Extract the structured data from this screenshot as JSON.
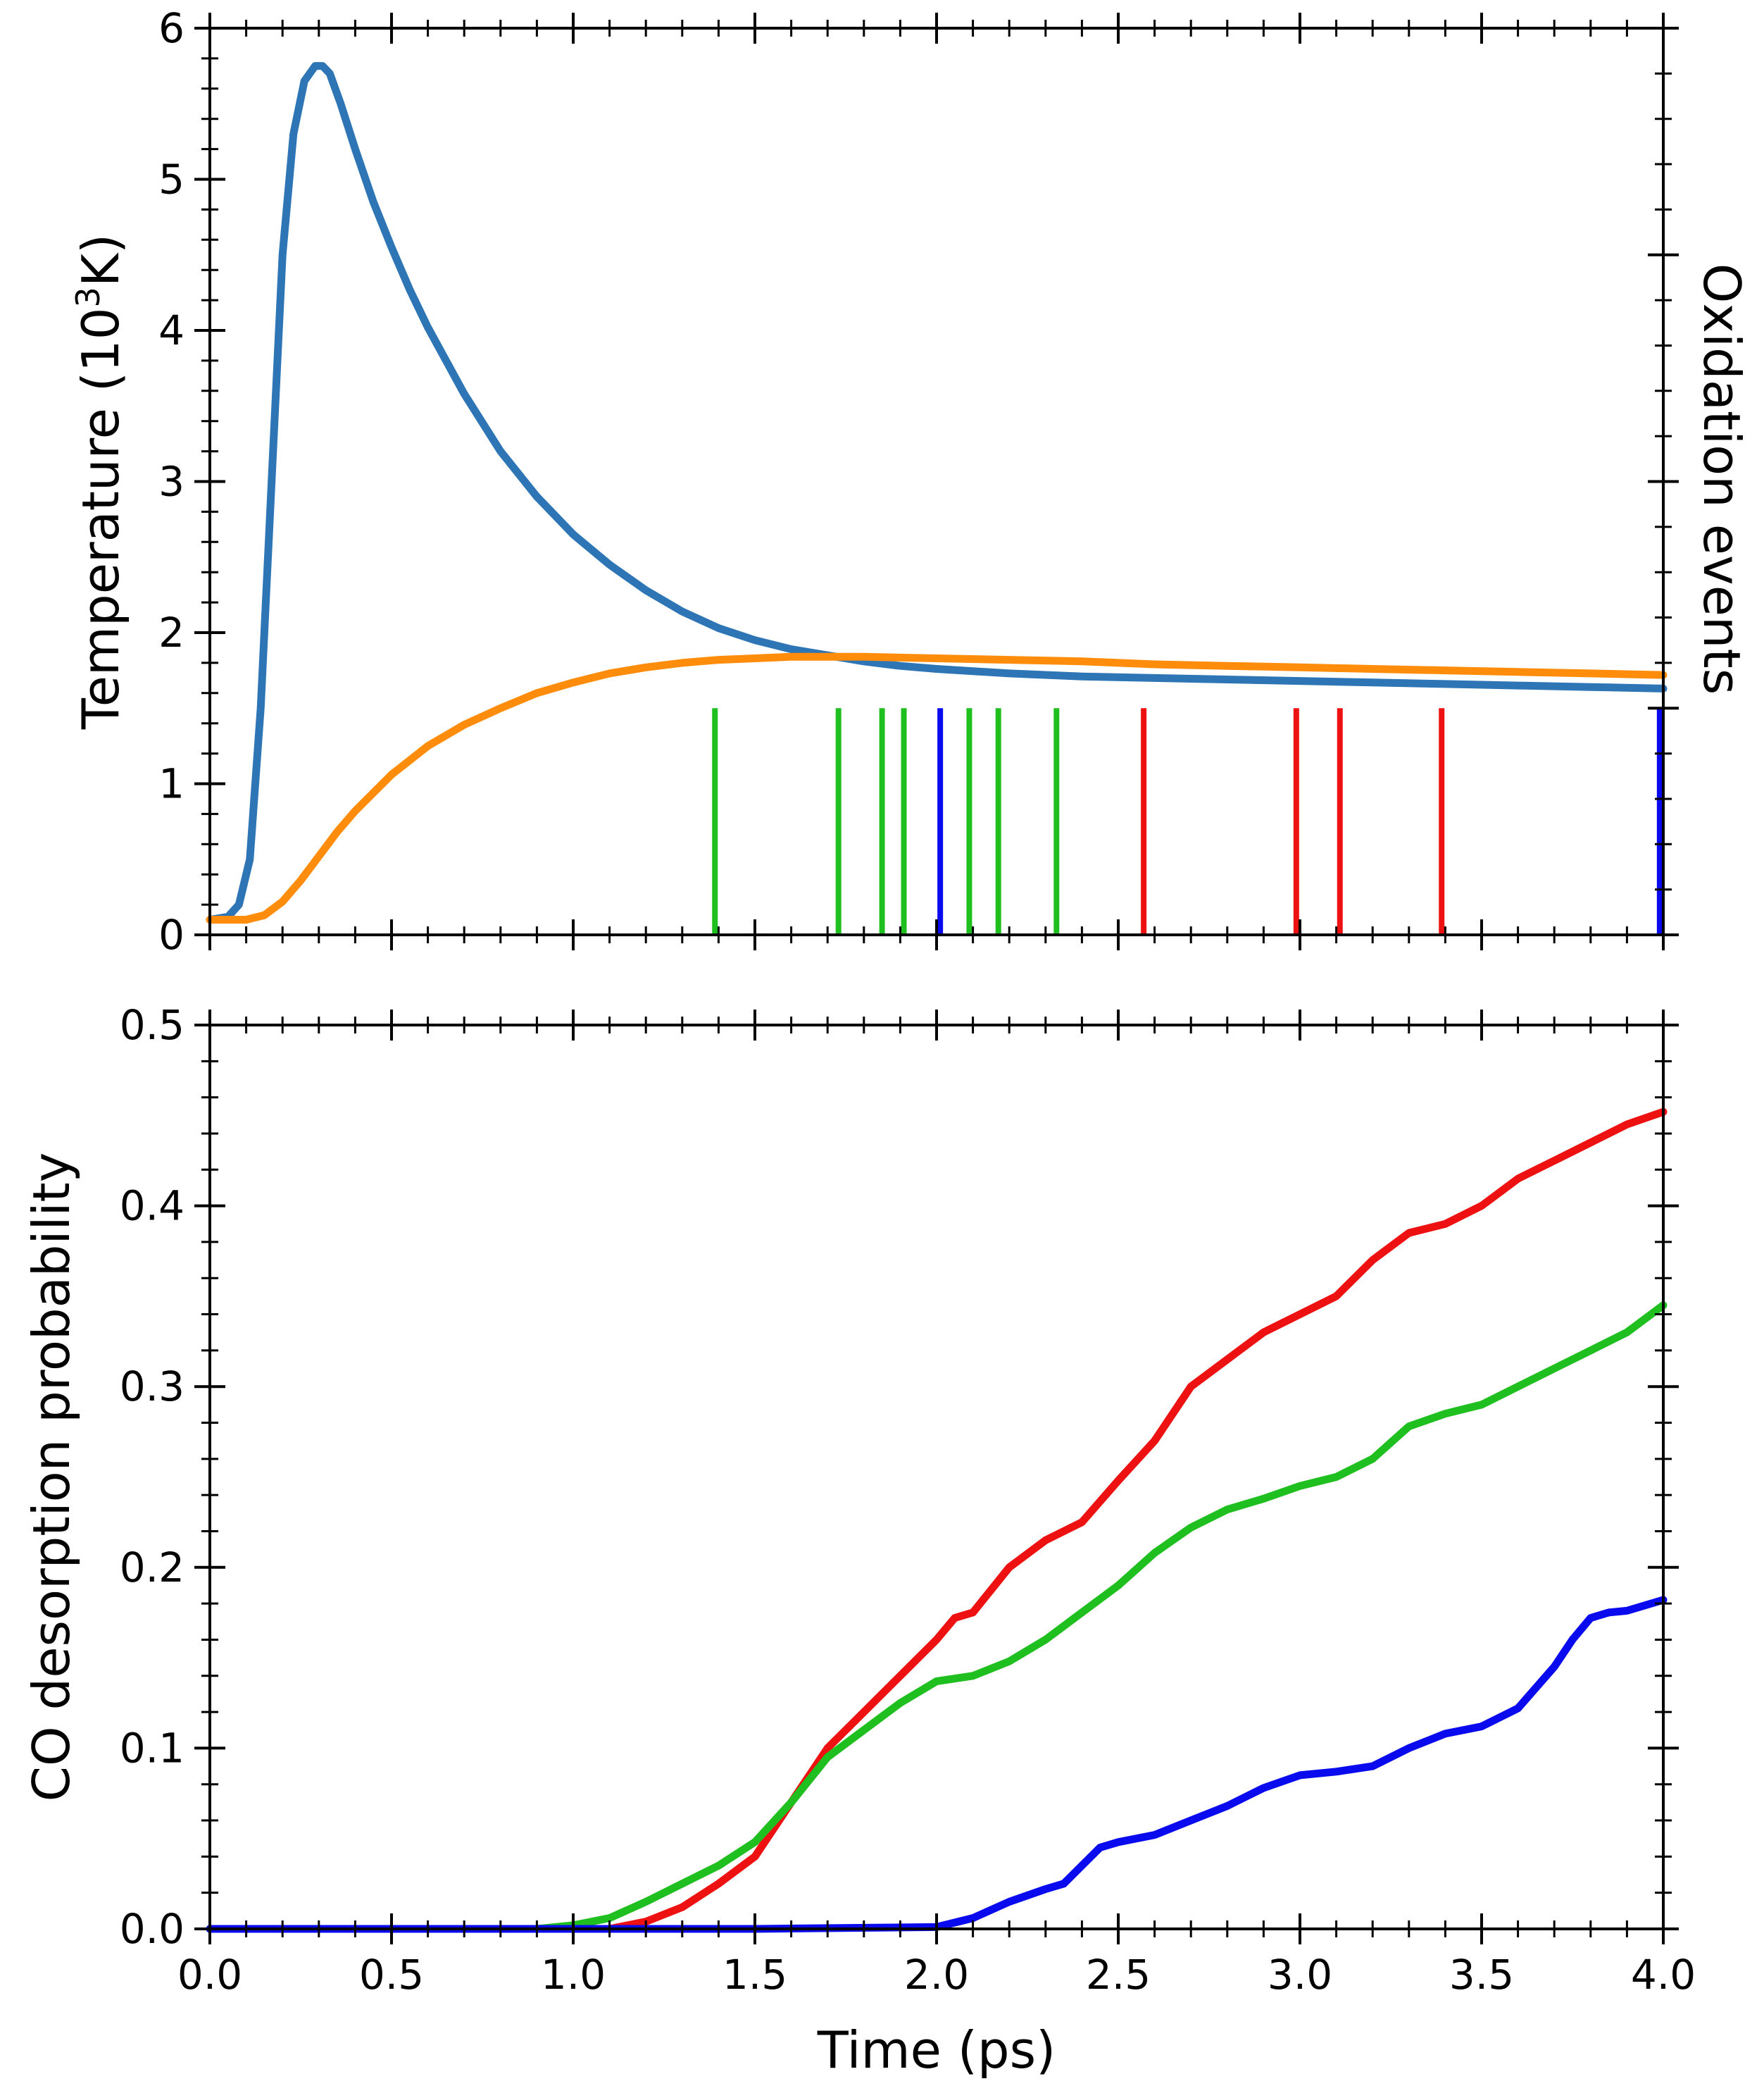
{
  "chart_data": [
    {
      "type": "line",
      "panel": "top",
      "title": "",
      "xlabel": "",
      "ylabel_left": "Temperature (10",
      "ylabel_left_sup": "3",
      "ylabel_left_end": "K)",
      "ylabel_right": "Oxidation events",
      "xlim": [
        0,
        4
      ],
      "ylim": [
        0,
        6
      ],
      "xticks": [
        "0.0",
        "0.5",
        "1.0",
        "1.5",
        "2.0",
        "2.5",
        "3.0",
        "3.5",
        "4.0"
      ],
      "yticks": [
        "0",
        "1",
        "2",
        "3",
        "4",
        "5",
        "6"
      ],
      "x_tick_values": [
        0,
        0.5,
        1.0,
        1.5,
        2.0,
        2.5,
        3.0,
        3.5,
        4.0
      ],
      "y_tick_values": [
        0,
        1,
        2,
        3,
        4,
        5,
        6
      ],
      "grid": false,
      "series": [
        {
          "color": "#2e75b6",
          "x": [
            0.0,
            0.05,
            0.08,
            0.11,
            0.14,
            0.17,
            0.2,
            0.23,
            0.26,
            0.29,
            0.31,
            0.33,
            0.36,
            0.4,
            0.45,
            0.5,
            0.55,
            0.6,
            0.7,
            0.8,
            0.9,
            1.0,
            1.1,
            1.2,
            1.3,
            1.4,
            1.5,
            1.6,
            1.7,
            1.8,
            1.9,
            2.0,
            2.2,
            2.4,
            2.6,
            2.8,
            3.0,
            3.2,
            3.4,
            3.6,
            3.8,
            4.0
          ],
          "y": [
            0.1,
            0.12,
            0.2,
            0.5,
            1.5,
            3.0,
            4.5,
            5.3,
            5.65,
            5.75,
            5.75,
            5.7,
            5.5,
            5.2,
            4.85,
            4.55,
            4.27,
            4.02,
            3.58,
            3.2,
            2.9,
            2.65,
            2.45,
            2.28,
            2.14,
            2.03,
            1.95,
            1.89,
            1.85,
            1.81,
            1.78,
            1.76,
            1.73,
            1.71,
            1.7,
            1.69,
            1.68,
            1.67,
            1.66,
            1.65,
            1.64,
            1.63
          ]
        },
        {
          "color": "#ff8c0a",
          "x": [
            0.0,
            0.1,
            0.15,
            0.2,
            0.25,
            0.3,
            0.35,
            0.4,
            0.5,
            0.6,
            0.7,
            0.8,
            0.9,
            1.0,
            1.1,
            1.2,
            1.3,
            1.4,
            1.5,
            1.6,
            1.7,
            1.8,
            2.0,
            2.2,
            2.4,
            2.6,
            2.8,
            3.0,
            3.2,
            3.4,
            3.6,
            3.8,
            4.0
          ],
          "y": [
            0.1,
            0.1,
            0.13,
            0.22,
            0.36,
            0.52,
            0.68,
            0.82,
            1.06,
            1.25,
            1.39,
            1.5,
            1.6,
            1.67,
            1.73,
            1.77,
            1.8,
            1.82,
            1.83,
            1.84,
            1.84,
            1.84,
            1.83,
            1.82,
            1.81,
            1.79,
            1.78,
            1.77,
            1.76,
            1.75,
            1.74,
            1.73,
            1.72
          ]
        }
      ],
      "oxidation_events": [
        {
          "x": 1.39,
          "color": "#1fbf1f"
        },
        {
          "x": 1.73,
          "color": "#1fbf1f"
        },
        {
          "x": 1.85,
          "color": "#1fbf1f"
        },
        {
          "x": 1.91,
          "color": "#1fbf1f"
        },
        {
          "x": 2.01,
          "color": "#0a0aee"
        },
        {
          "x": 2.09,
          "color": "#1fbf1f"
        },
        {
          "x": 2.17,
          "color": "#1fbf1f"
        },
        {
          "x": 2.33,
          "color": "#1fbf1f"
        },
        {
          "x": 2.57,
          "color": "#ee1111"
        },
        {
          "x": 2.99,
          "color": "#ee1111"
        },
        {
          "x": 3.11,
          "color": "#ee1111"
        },
        {
          "x": 3.39,
          "color": "#ee1111"
        },
        {
          "x": 3.99,
          "color": "#0a0aee"
        }
      ],
      "event_top_y": 1.5
    },
    {
      "type": "line",
      "panel": "bottom",
      "title": "",
      "xlabel": "Time (ps)",
      "ylabel": "CO desorption probability",
      "xlim": [
        0,
        4
      ],
      "ylim": [
        0,
        0.5
      ],
      "xticks": [
        "0.0",
        "0.5",
        "1.0",
        "1.5",
        "2.0",
        "2.5",
        "3.0",
        "3.5",
        "4.0"
      ],
      "yticks": [
        "0.0",
        "0.1",
        "0.2",
        "0.3",
        "0.4",
        "0.5"
      ],
      "x_tick_values": [
        0,
        0.5,
        1.0,
        1.5,
        2.0,
        2.5,
        3.0,
        3.5,
        4.0
      ],
      "y_tick_values": [
        0,
        0.1,
        0.2,
        0.3,
        0.4,
        0.5
      ],
      "grid": false,
      "series": [
        {
          "color": "#ee1111",
          "x": [
            0.0,
            1.0,
            1.1,
            1.2,
            1.3,
            1.4,
            1.5,
            1.6,
            1.7,
            1.8,
            1.9,
            2.0,
            2.05,
            2.1,
            2.2,
            2.3,
            2.4,
            2.5,
            2.6,
            2.7,
            2.8,
            2.9,
            3.0,
            3.1,
            3.2,
            3.3,
            3.4,
            3.5,
            3.6,
            3.7,
            3.8,
            3.9,
            4.0
          ],
          "y": [
            0.0,
            0.0,
            0.0,
            0.004,
            0.012,
            0.025,
            0.04,
            0.07,
            0.1,
            0.12,
            0.14,
            0.16,
            0.172,
            0.175,
            0.2,
            0.215,
            0.225,
            0.248,
            0.27,
            0.3,
            0.315,
            0.33,
            0.34,
            0.35,
            0.37,
            0.385,
            0.39,
            0.4,
            0.415,
            0.425,
            0.435,
            0.445,
            0.452
          ]
        },
        {
          "color": "#1fbf1f",
          "x": [
            0.0,
            0.9,
            1.0,
            1.1,
            1.2,
            1.3,
            1.4,
            1.5,
            1.6,
            1.7,
            1.8,
            1.9,
            2.0,
            2.1,
            2.2,
            2.3,
            2.4,
            2.5,
            2.6,
            2.7,
            2.8,
            2.9,
            3.0,
            3.1,
            3.2,
            3.3,
            3.4,
            3.5,
            3.6,
            3.7,
            3.8,
            3.9,
            4.0
          ],
          "y": [
            0.0,
            0.0,
            0.002,
            0.006,
            0.015,
            0.025,
            0.035,
            0.048,
            0.07,
            0.095,
            0.11,
            0.125,
            0.137,
            0.14,
            0.148,
            0.16,
            0.175,
            0.19,
            0.208,
            0.222,
            0.232,
            0.238,
            0.245,
            0.25,
            0.26,
            0.278,
            0.285,
            0.29,
            0.3,
            0.31,
            0.32,
            0.33,
            0.345
          ]
        },
        {
          "color": "#0a0aee",
          "x": [
            0.0,
            1.5,
            2.0,
            2.1,
            2.2,
            2.3,
            2.35,
            2.45,
            2.5,
            2.6,
            2.7,
            2.8,
            2.9,
            3.0,
            3.1,
            3.2,
            3.3,
            3.4,
            3.5,
            3.6,
            3.7,
            3.75,
            3.8,
            3.85,
            3.9,
            4.0
          ],
          "y": [
            0.0,
            0.0,
            0.001,
            0.006,
            0.015,
            0.022,
            0.025,
            0.045,
            0.048,
            0.052,
            0.06,
            0.068,
            0.078,
            0.085,
            0.087,
            0.09,
            0.1,
            0.108,
            0.112,
            0.122,
            0.145,
            0.16,
            0.172,
            0.175,
            0.176,
            0.182
          ]
        }
      ]
    }
  ]
}
